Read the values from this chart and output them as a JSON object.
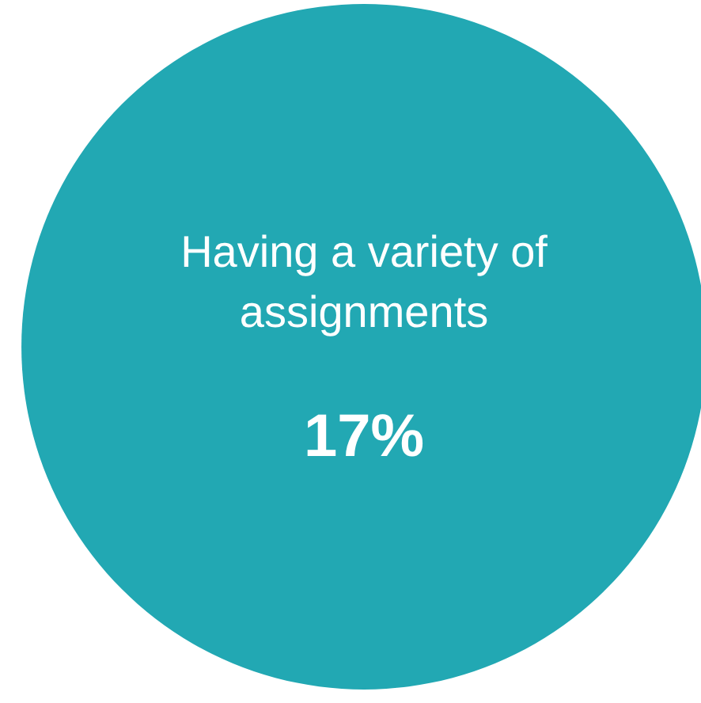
{
  "chart_data": {
    "type": "other",
    "categories": [
      "Having a variety of assignments"
    ],
    "values": [
      17
    ],
    "value_labels": [
      "17%"
    ],
    "color": "#22a8b3"
  }
}
